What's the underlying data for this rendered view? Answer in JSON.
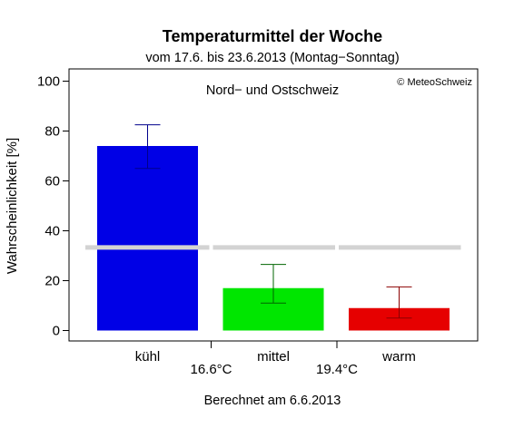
{
  "chart_data": {
    "type": "bar",
    "title": "Temperaturmittel der Woche",
    "subtitle": "vom 17.6. bis 23.6.2013 (Montag−Sonntag)",
    "region_label": "Nord− und Ostschweiz",
    "copyright": "© MeteoSchweiz",
    "ylabel": "Wahrscheinlichkeit [%]",
    "ylim": [
      0,
      100
    ],
    "yticks": [
      0,
      20,
      40,
      60,
      80,
      100
    ],
    "categories": [
      "kühl",
      "mittel",
      "warm"
    ],
    "values": [
      74,
      17,
      9
    ],
    "error_low": [
      65,
      11,
      5
    ],
    "error_high": [
      82.5,
      26.5,
      17.5
    ],
    "bar_colors": [
      "#0000e6",
      "#00e600",
      "#e60000"
    ],
    "error_colors": [
      "#00008b",
      "#006400",
      "#8b0000"
    ],
    "reference_line": 33.3,
    "reference_color": "#d3d3d3",
    "thresholds": [
      "16.6°C",
      "19.4°C"
    ],
    "footer": "Berechnet am 6.6.2013",
    "grid": false,
    "legend": "none"
  }
}
